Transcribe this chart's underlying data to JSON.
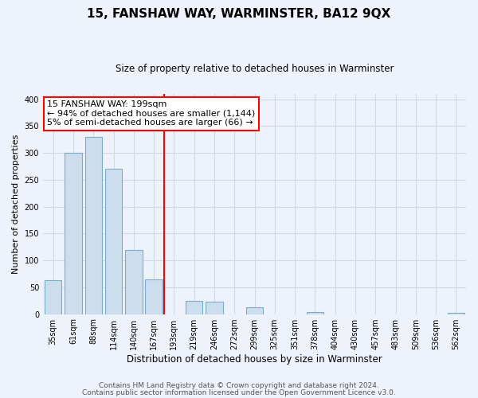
{
  "title": "15, FANSHAW WAY, WARMINSTER, BA12 9QX",
  "subtitle": "Size of property relative to detached houses in Warminster",
  "xlabel": "Distribution of detached houses by size in Warminster",
  "ylabel": "Number of detached properties",
  "footnote1": "Contains HM Land Registry data © Crown copyright and database right 2024.",
  "footnote2": "Contains public sector information licensed under the Open Government Licence v3.0.",
  "bin_labels": [
    "35sqm",
    "61sqm",
    "88sqm",
    "114sqm",
    "140sqm",
    "167sqm",
    "193sqm",
    "219sqm",
    "246sqm",
    "272sqm",
    "299sqm",
    "325sqm",
    "351sqm",
    "378sqm",
    "404sqm",
    "430sqm",
    "457sqm",
    "483sqm",
    "509sqm",
    "536sqm",
    "562sqm"
  ],
  "bar_values": [
    63,
    300,
    330,
    270,
    120,
    65,
    0,
    25,
    23,
    0,
    13,
    0,
    0,
    4,
    0,
    0,
    0,
    0,
    0,
    0,
    3
  ],
  "bar_color": "#ccdded",
  "bar_edge_color": "#7aaccb",
  "vline_color": "red",
  "vline_index": 6,
  "ylim": [
    0,
    410
  ],
  "yticks": [
    0,
    50,
    100,
    150,
    200,
    250,
    300,
    350,
    400
  ],
  "annotation_line1": "15 FANSHAW WAY: 199sqm",
  "annotation_line2": "← 94% of detached houses are smaller (1,144)",
  "annotation_line3": "5% of semi-detached houses are larger (66) →",
  "annotation_box_color": "#ffffff",
  "annotation_box_edge": "red",
  "grid_color": "#d0d8e8",
  "background_color": "#eef2fa",
  "title_fontsize": 11,
  "subtitle_fontsize": 8.5,
  "ylabel_fontsize": 8,
  "xlabel_fontsize": 8.5,
  "tick_fontsize": 7,
  "footnote_fontsize": 6.5,
  "annotation_fontsize": 8
}
